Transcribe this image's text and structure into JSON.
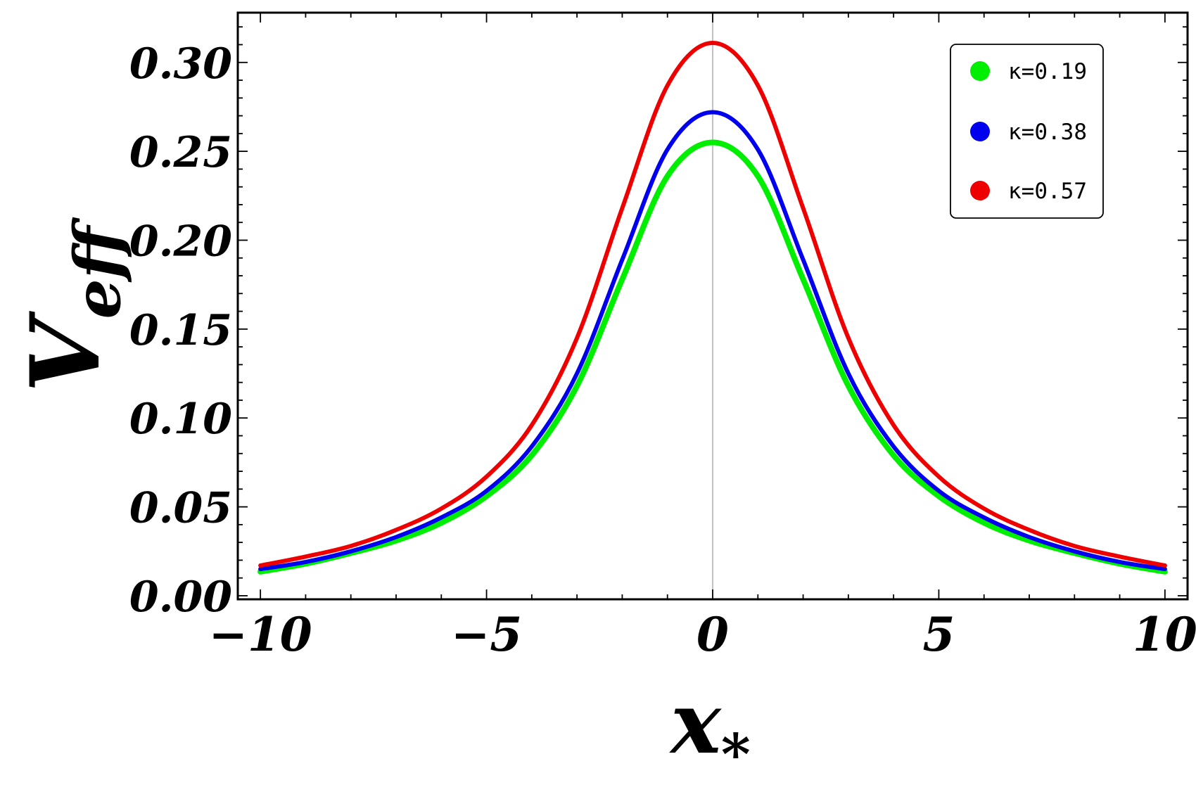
{
  "chart_data": {
    "type": "line",
    "xlabel": "x",
    "xlabel_sub": "*",
    "ylabel": "V",
    "ylabel_sub": "eff",
    "xlim": [
      -10.5,
      10.5
    ],
    "ylim": [
      -0.002,
      0.328
    ],
    "x_ticks": [
      -10,
      -5,
      0,
      5,
      10
    ],
    "x_tick_labels": [
      "−10",
      "−5",
      "0",
      "5",
      "10"
    ],
    "y_ticks": [
      0.0,
      0.05,
      0.1,
      0.15,
      0.2,
      0.25,
      0.3
    ],
    "y_tick_labels": [
      "0.00",
      "0.05",
      "0.10",
      "0.15",
      "0.20",
      "0.25",
      "0.30"
    ],
    "grid": false,
    "legend_position": "top-right",
    "x": [
      -10,
      -9,
      -8,
      -7,
      -6,
      -5,
      -4,
      -3,
      -2,
      -1,
      0,
      1,
      2,
      3,
      4,
      5,
      6,
      7,
      8,
      9,
      10
    ],
    "series": [
      {
        "name": "κ=0.19",
        "color": "#00ee00",
        "values": [
          0.0135,
          0.018,
          0.024,
          0.031,
          0.041,
          0.056,
          0.079,
          0.118,
          0.178,
          0.236,
          0.255,
          0.236,
          0.178,
          0.118,
          0.079,
          0.056,
          0.041,
          0.031,
          0.024,
          0.018,
          0.0135
        ]
      },
      {
        "name": "κ=0.38",
        "color": "#0000ee",
        "values": [
          0.015,
          0.019,
          0.025,
          0.033,
          0.044,
          0.059,
          0.084,
          0.125,
          0.189,
          0.251,
          0.272,
          0.251,
          0.189,
          0.125,
          0.084,
          0.059,
          0.044,
          0.033,
          0.025,
          0.019,
          0.015
        ]
      },
      {
        "name": "κ=0.57",
        "color": "#ee0000",
        "values": [
          0.017,
          0.022,
          0.028,
          0.037,
          0.049,
          0.067,
          0.096,
          0.145,
          0.218,
          0.287,
          0.311,
          0.287,
          0.218,
          0.145,
          0.096,
          0.067,
          0.049,
          0.037,
          0.028,
          0.022,
          0.017
        ]
      }
    ]
  }
}
